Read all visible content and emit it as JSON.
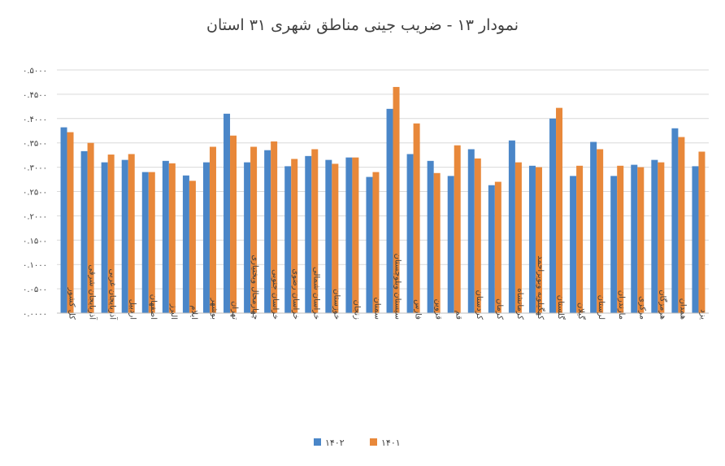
{
  "chart_data": {
    "type": "bar",
    "title": "نمودار ۱۳ - ضریب جینی مناطق شهری ۳۱ استان",
    "ylim": [
      0,
      0.5
    ],
    "ytick_labels": [
      "۰.۰۰۰۰",
      "۰.۰۵۰۰",
      "۰.۱۰۰۰",
      "۰.۱۵۰۰",
      "۰.۲۰۰۰",
      "۰.۲۵۰۰",
      "۰.۳۰۰۰",
      "۰.۳۵۰۰",
      "۰.۴۰۰۰",
      "۰.۴۵۰۰",
      "۰.۵۰۰۰"
    ],
    "ytick_values": [
      0,
      0.05,
      0.1,
      0.15,
      0.2,
      0.25,
      0.3,
      0.35,
      0.4,
      0.45,
      0.5
    ],
    "grid": true,
    "legend_position": "bottom",
    "categories": [
      "کل کشور",
      "آذربایجان شرقی",
      "آذربایجان غربی",
      "اردبیل",
      "اصفهان",
      "البرز",
      "ایلام",
      "بوشهر",
      "تهران",
      "چهارمحال وبختیاری",
      "خراسان جنوبی",
      "خراسان رضوی",
      "خراسان شمالی",
      "خوزستان",
      "زنجان",
      "سمنان",
      "سیستان وبلوچستان",
      "فارس",
      "قزوین",
      "قم",
      "کردستان",
      "کرمان",
      "کرمانشاه",
      "کهگیلویه وبویراحمد",
      "گلستان",
      "گیلان",
      "لرستان",
      "مازندران",
      "مرکزی",
      "هرمزگان",
      "همدان",
      "یزد"
    ],
    "series": [
      {
        "name": "۱۴۰۲",
        "color": "#4a86c8",
        "values": [
          0.382,
          0.333,
          0.31,
          0.315,
          0.29,
          0.313,
          0.283,
          0.31,
          0.41,
          0.31,
          0.335,
          0.302,
          0.323,
          0.315,
          0.32,
          0.28,
          0.42,
          0.327,
          0.313,
          0.282,
          0.337,
          0.263,
          0.355,
          0.303,
          0.4,
          0.282,
          0.352,
          0.282,
          0.305,
          0.315,
          0.38,
          0.302
        ]
      },
      {
        "name": "۱۴۰۱",
        "color": "#e8883a",
        "values": [
          0.372,
          0.35,
          0.326,
          0.327,
          0.29,
          0.308,
          0.272,
          0.342,
          0.365,
          0.342,
          0.353,
          0.317,
          0.337,
          0.307,
          0.32,
          0.29,
          0.465,
          0.39,
          0.288,
          0.345,
          0.318,
          0.27,
          0.31,
          0.3,
          0.422,
          0.303,
          0.337,
          0.303,
          0.3,
          0.31,
          0.362,
          0.332
        ]
      }
    ]
  },
  "legend": [
    {
      "label": "۱۴۰۲",
      "color": "#4a86c8"
    },
    {
      "label": "۱۴۰۱",
      "color": "#e8883a"
    }
  ]
}
